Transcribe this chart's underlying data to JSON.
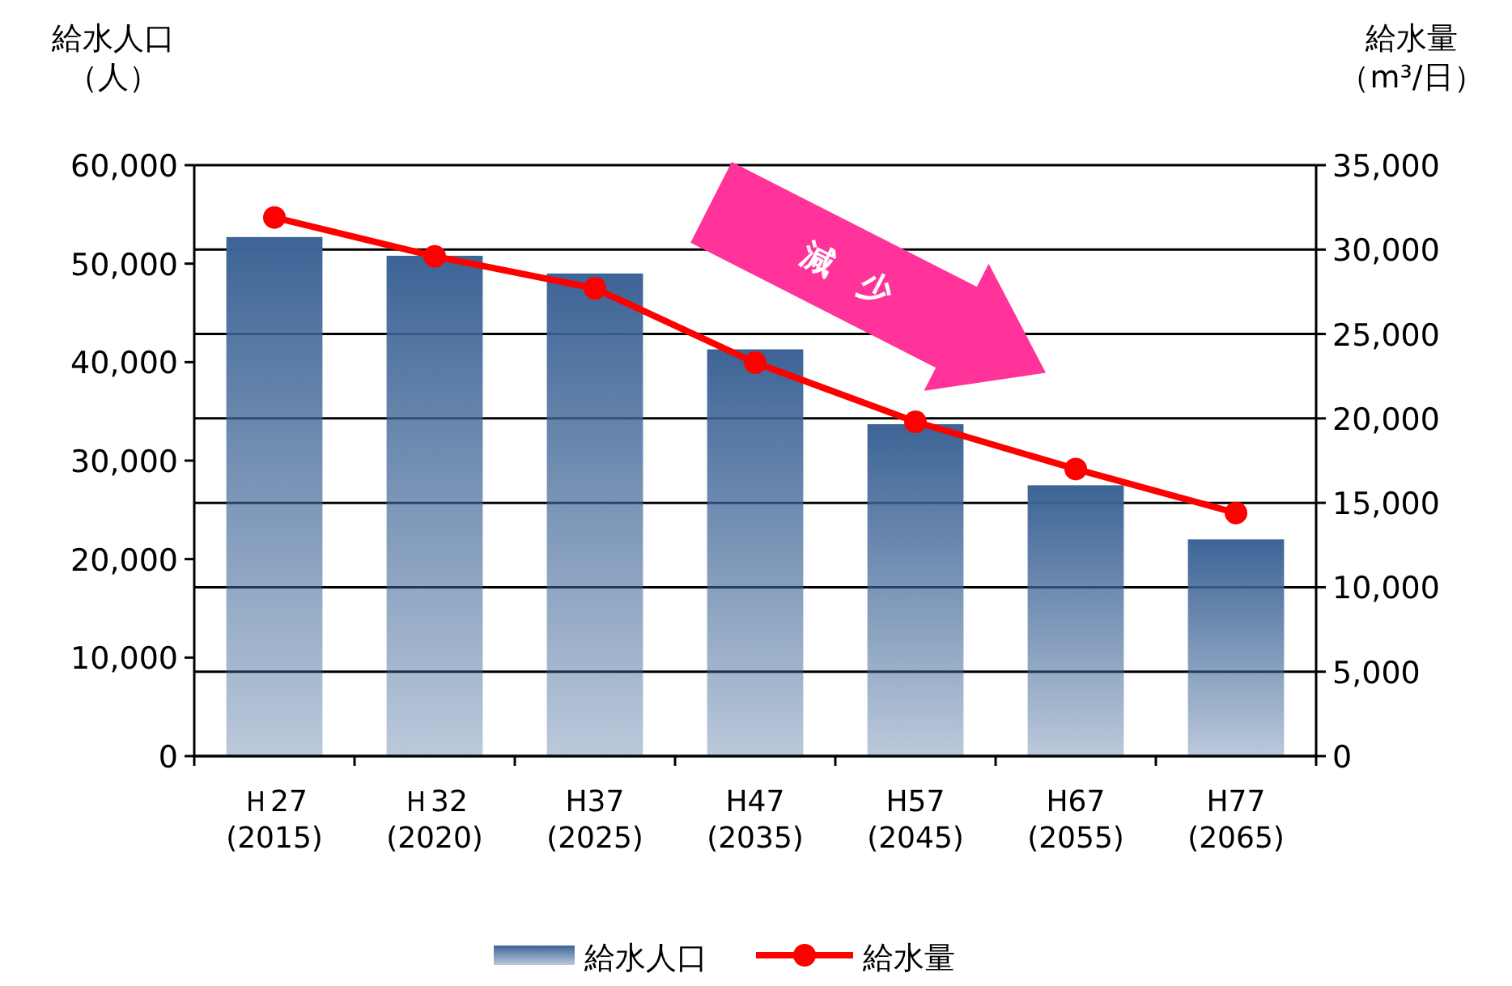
{
  "chart_data": {
    "type": "bar",
    "categories": [
      "Ｈ27\n(2015)",
      "Ｈ32\n(2020)",
      "H37\n(2025)",
      "H47\n(2035)",
      "H57\n(2045)",
      "H67\n(2055)",
      "H77\n(2065)"
    ],
    "ylabel": "給水人口（人）",
    "y2label": "給水量（m³/日）",
    "ylim": [
      0,
      60000
    ],
    "yticks": [
      0,
      {
        "value": 10000,
        "label": "10,000"
      },
      {
        "value": 20000,
        "label": "20,000"
      },
      {
        "value": 30000,
        "label": "30,000"
      },
      {
        "value": 40000,
        "label": "40,000"
      },
      {
        "value": 50000,
        "label": "50,000"
      },
      {
        "value": 60000,
        "label": "60,000"
      }
    ],
    "y2lim": [
      0,
      35000
    ],
    "y2ticks": [
      0,
      {
        "value": 5000,
        "label": "5,000"
      },
      {
        "value": 10000,
        "label": "10,000"
      },
      {
        "value": 15000,
        "label": "15,000"
      },
      {
        "value": 20000,
        "label": "20,000"
      },
      {
        "value": 25000,
        "label": "25,000"
      },
      {
        "value": 30000,
        "label": "30,000"
      },
      {
        "value": 35000,
        "label": "35,000"
      }
    ],
    "grid": "y",
    "legend": "bottom",
    "annotations": [
      "減　少"
    ],
    "series": [
      {
        "name": "給水人口",
        "color": "#3d6496",
        "values": [
          52700,
          50800,
          49000,
          41300,
          33700,
          27500,
          22000
        ]
      },
      {
        "name": "給水量",
        "type": "line",
        "axis": "y2",
        "color": "#ff0000",
        "marker": "circle",
        "values": [
          31900,
          29600,
          27700,
          23300,
          19800,
          17000,
          14400
        ]
      }
    ]
  }
}
